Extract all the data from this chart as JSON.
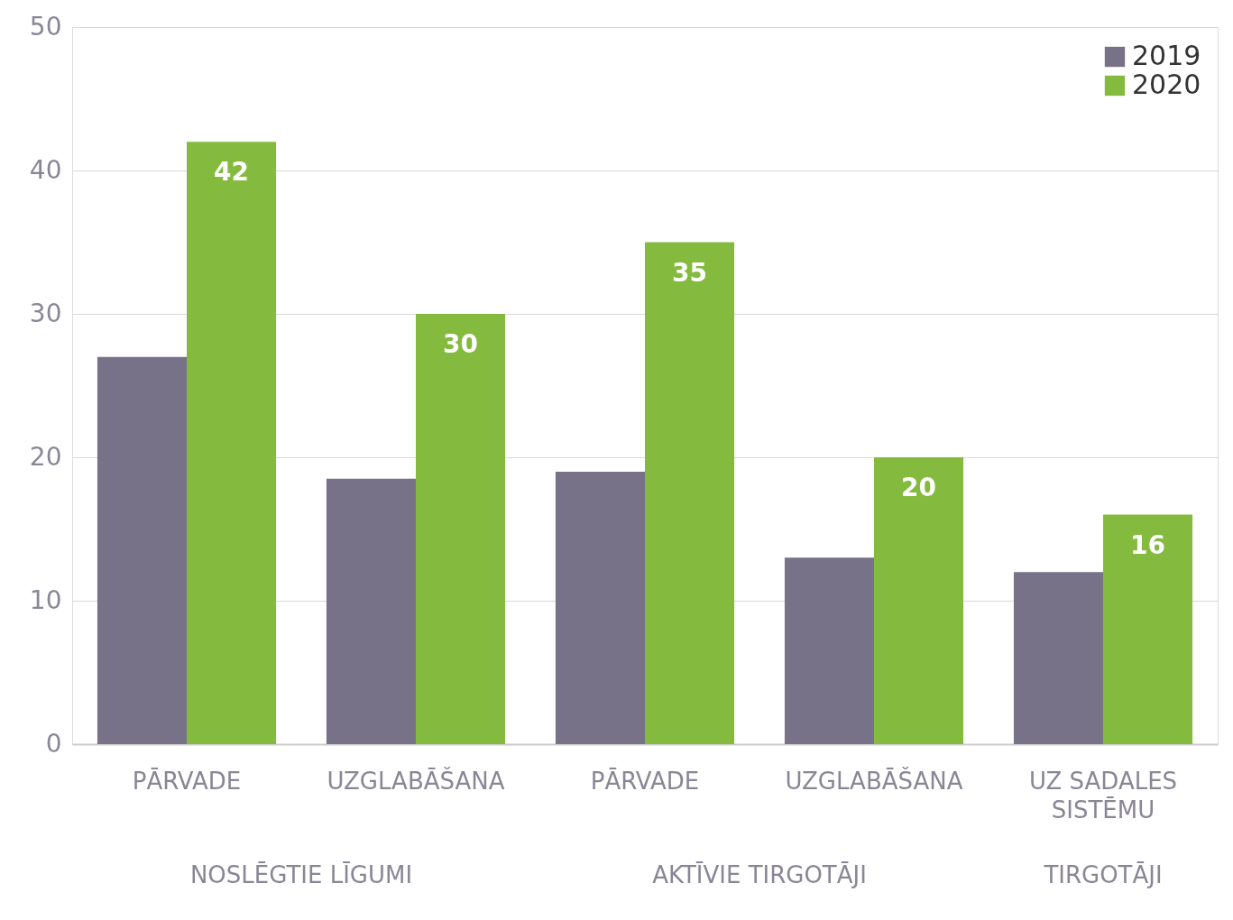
{
  "chart_data": {
    "type": "bar",
    "categories": [
      "PĀRVADE",
      "UZGLABĀŠANA",
      "PĀRVADE",
      "UZGLABĀŠANA",
      "UZ SADALES SISTĒMU"
    ],
    "series": [
      {
        "name": "2019",
        "color": "#777287",
        "values": [
          27,
          18.5,
          19,
          13,
          12
        ]
      },
      {
        "name": "2020",
        "color": "#84bb3f",
        "values": [
          42,
          30,
          35,
          20,
          16
        ],
        "value_labels": [
          "42",
          "30",
          "35",
          "20",
          "16"
        ]
      }
    ],
    "ylim": [
      0,
      50
    ],
    "yticks": [
      0,
      10,
      20,
      30,
      40,
      50
    ],
    "grid": "y",
    "legend": "top right",
    "annotations": [
      "NOSLĒGTIE LĪGUMI",
      "AKTĪVIE TIRGOTĀJI",
      "TIRGOTĀJI"
    ]
  }
}
